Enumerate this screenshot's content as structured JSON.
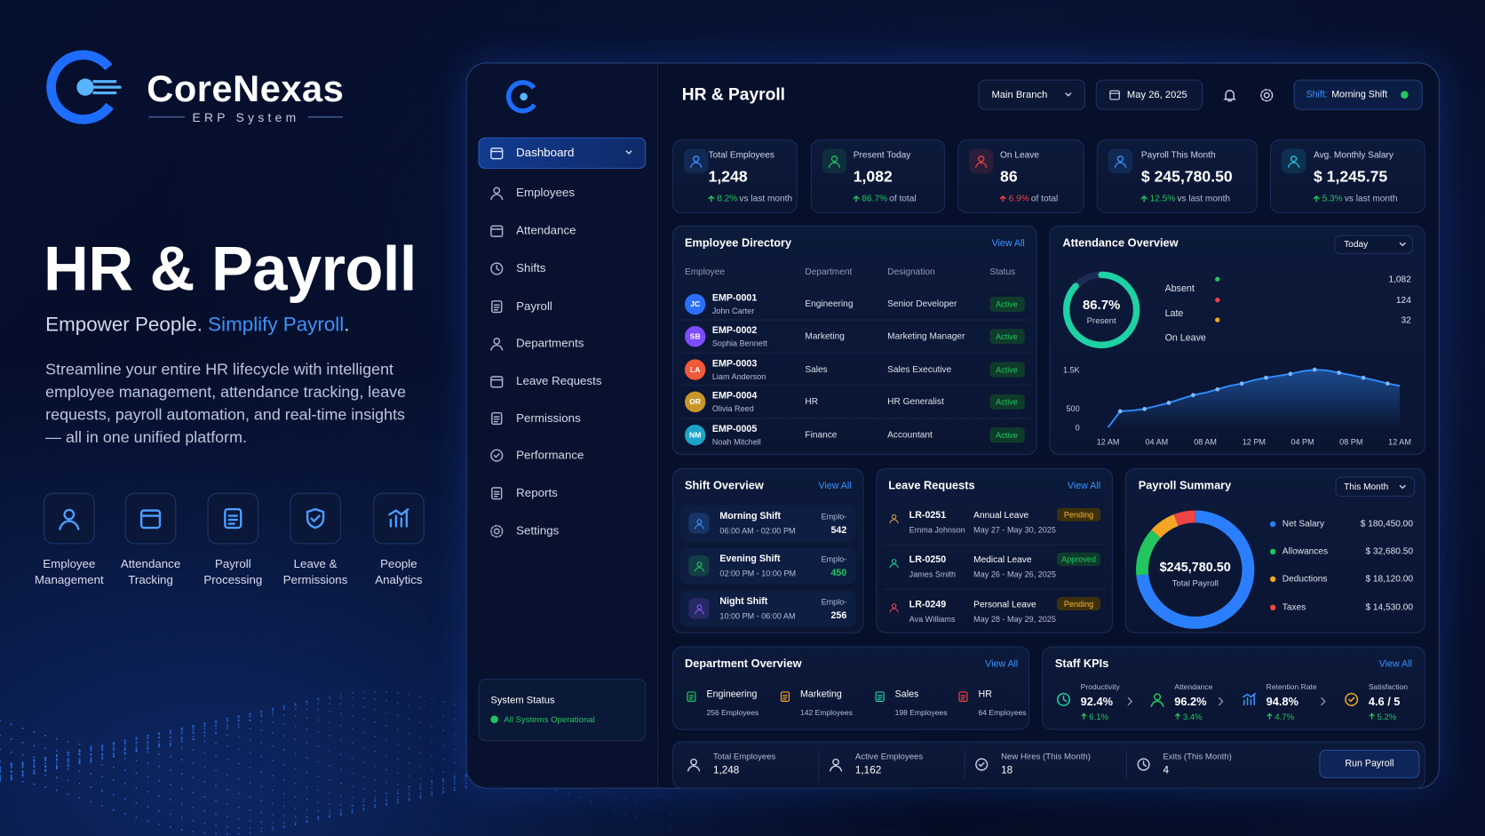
{
  "brand": {
    "name": "CoreNexas",
    "tagline": "ERP System"
  },
  "hero": {
    "title": "HR & Payroll",
    "subtitle_a": "Empower People.",
    "subtitle_b": "Simplify Payroll",
    "subtitle_end": ".",
    "description": "Streamline your entire HR lifecycle with intelligent employee management, attendance tracking, leave requests, payroll automation, and real-time insights — all in one unified platform."
  },
  "features": [
    "Employee Management",
    "Attendance Tracking",
    "Payroll Processing",
    "Leave & Permissions",
    "People Analytics"
  ],
  "sidebar": {
    "items": [
      "Dashboard",
      "Employees",
      "Attendance",
      "Shifts",
      "Payroll",
      "Departments",
      "Leave Requests",
      "Permissions",
      "Performance",
      "Reports",
      "Settings"
    ],
    "status_title": "System Status",
    "status_text": "All Systems Operational"
  },
  "header": {
    "title": "HR & Payroll",
    "branch": "Main Branch",
    "date": "May 26, 2025",
    "shift_label": "Shift:",
    "shift": "Morning Shift"
  },
  "kpis": [
    {
      "label": "Total Employees",
      "value": "1,248",
      "change": "8.2%",
      "note": "vs last month"
    },
    {
      "label": "Present Today",
      "value": "1,082",
      "change": "86.7%",
      "note": "of total"
    },
    {
      "label": "On Leave",
      "value": "86",
      "change": "6.9%",
      "note": "of total"
    },
    {
      "label": "Payroll This Month",
      "value": "$ 245,780.50",
      "change": "12.5%",
      "note": "vs last month"
    },
    {
      "label": "Avg. Monthly Salary",
      "value": "$ 1,245.75",
      "change": "5.3%",
      "note": "vs last month"
    }
  ],
  "directory": {
    "title": "Employee Directory",
    "view_all": "View All",
    "columns": [
      "Employee",
      "Department",
      "Designation",
      "Status"
    ],
    "rows": [
      {
        "initials": "JC",
        "id": "EMP-0001",
        "name": "John Carter",
        "department": "Engineering",
        "designation": "Senior Developer",
        "status": "Active"
      },
      {
        "initials": "SB",
        "id": "EMP-0002",
        "name": "Sophia Bennett",
        "department": "Marketing",
        "designation": "Marketing Manager",
        "status": "Active"
      },
      {
        "initials": "LA",
        "id": "EMP-0003",
        "name": "Liam Anderson",
        "department": "Sales",
        "designation": "Sales Executive",
        "status": "Active"
      },
      {
        "initials": "OR",
        "id": "EMP-0004",
        "name": "Olivia Reed",
        "department": "HR",
        "designation": "HR Generalist",
        "status": "Active"
      },
      {
        "initials": "NM",
        "id": "EMP-0005",
        "name": "Noah Mitchell",
        "department": "Finance",
        "designation": "Accountant",
        "status": "Active"
      }
    ]
  },
  "attendance": {
    "title": "Attendance Overview",
    "period": "Today",
    "present": {
      "value": 86.7,
      "label": "86.7%"
    },
    "present_label": "Present",
    "legend": [
      "Absent",
      "Late",
      "On Leave"
    ],
    "stats": [
      "1,082",
      "124",
      "32"
    ],
    "chart": {
      "type": "line",
      "x": [
        0,
        1,
        2,
        3,
        4,
        5,
        6,
        7,
        8,
        9,
        10,
        11,
        12,
        13,
        14,
        15,
        16,
        17,
        18,
        19,
        20,
        21,
        22,
        23,
        24
      ],
      "series": [
        {
          "color": "#2f8cff",
          "values": [
            0,
            420,
            440,
            480,
            560,
            640,
            740,
            840,
            900,
            990,
            1080,
            1140,
            1230,
            1290,
            1340,
            1390,
            1460,
            1500,
            1480,
            1420,
            1360,
            1290,
            1220,
            1140,
            1080
          ]
        }
      ],
      "xlim": [
        0,
        24
      ],
      "ylim": [
        0,
        1500
      ],
      "xticks": [
        {
          "value": 0,
          "label": "12 AM"
        },
        {
          "value": 4,
          "label": "04 AM"
        },
        {
          "value": 8,
          "label": "08 AM"
        },
        {
          "value": 12,
          "label": "12 PM"
        },
        {
          "value": 16,
          "label": "04 PM"
        },
        {
          "value": 20,
          "label": "08 PM"
        },
        {
          "value": 24,
          "label": "12 AM"
        }
      ],
      "yticks": [
        0,
        500,
        {
          "value": 1500,
          "label": "1.5K"
        }
      ]
    }
  },
  "shifts": {
    "title": "Shift Overview",
    "view_all": "View All",
    "items": [
      {
        "name": "Morning Shift",
        "time": "06:00 AM - 02:00 PM",
        "label": "Emplo-",
        "count": "542"
      },
      {
        "name": "Evening Shift",
        "time": "02:00 PM - 10:00 PM",
        "label": "Emplo-",
        "count": "450"
      },
      {
        "name": "Night Shift",
        "time": "10:00 PM - 06:00 AM",
        "label": "Emplo-",
        "count": "256"
      }
    ]
  },
  "leave": {
    "title": "Leave Requests",
    "view_all": "View All",
    "items": [
      {
        "id": "LR-0251",
        "name": "Emma Johnson",
        "type": "Annual Leave",
        "dates": "May 27 - May 30, 2025",
        "status": "Pending"
      },
      {
        "id": "LR-0250",
        "name": "James Smith",
        "type": "Medical Leave",
        "dates": "May 26 - May 26, 2025",
        "status": "Approved"
      },
      {
        "id": "LR-0249",
        "name": "Ava Williams",
        "type": "Personal Leave",
        "dates": "May 28 - May 29, 2025",
        "status": "Pending"
      }
    ]
  },
  "payroll": {
    "title": "Payroll Summary",
    "period": "This Month",
    "total": "$245,780.50",
    "total_label": "Total Payroll",
    "items": [
      {
        "name": "Net Salary",
        "value": 180450,
        "label": "$ 180,450.00",
        "color": "#2b7fff"
      },
      {
        "name": "Allowances",
        "value": 32680.5,
        "label": "$ 32,680.50",
        "color": "#22c55e"
      },
      {
        "name": "Deductions",
        "value": 18120,
        "label": "$ 18,120.00",
        "color": "#f5a524"
      },
      {
        "name": "Taxes",
        "value": 14530,
        "label": "$ 14,530.00",
        "color": "#ef4444"
      }
    ]
  },
  "departments": {
    "title": "Department Overview",
    "view_all": "View All",
    "items": [
      {
        "name": "Engineering",
        "count": "256 Employees"
      },
      {
        "name": "Marketing",
        "count": "142 Employees"
      },
      {
        "name": "Sales",
        "count": "198 Employees"
      },
      {
        "name": "HR",
        "count": "64 Employees"
      }
    ]
  },
  "staff_kpis": {
    "title": "Staff KPIs",
    "view_all": "View All",
    "items": [
      {
        "label": "Productivity",
        "value": "92.4%",
        "change": "6.1%"
      },
      {
        "label": "Attendance",
        "value": "96.2%",
        "change": "3.4%"
      },
      {
        "label": "Retention Rate",
        "value": "94.8%",
        "change": "4.7%"
      },
      {
        "label": "Satisfaction",
        "value": "4.6 / 5",
        "change": "5.2%"
      }
    ]
  },
  "footer": {
    "stats": [
      {
        "label": "Total Employees",
        "value": "1,248"
      },
      {
        "label": "Active Employees",
        "value": "1,162"
      },
      {
        "label": "New Hires (This Month)",
        "value": "18"
      },
      {
        "label": "Exits (This Month)",
        "value": "4"
      }
    ],
    "button": "Run Payroll"
  }
}
